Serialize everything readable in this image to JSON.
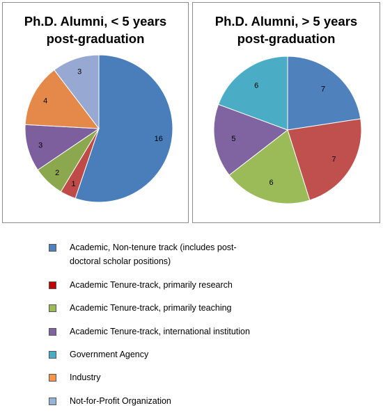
{
  "colors": {
    "academic_non_tenure": "#4f81bd",
    "tenure_research": "#c0504d",
    "tenure_teaching": "#9bbb59",
    "tenure_international": "#8064a2",
    "government": "#4bacc6",
    "industry": "#f79646",
    "nonprofit": "#93a9d6"
  },
  "chart_data": [
    {
      "type": "pie",
      "title": [
        "Ph.D. Alumni, < 5 years",
        "post-graduation"
      ],
      "slices": [
        {
          "category": "Academic, Non-tenure track (includes post-doctoral scholar positions)",
          "value": 16,
          "label": "16",
          "color": "#4a7ebb"
        },
        {
          "category": "Academic Tenure-track, primarily research",
          "value": 1,
          "label": "1",
          "color": "#be4b48"
        },
        {
          "category": "Academic Tenure-track, primarily teaching",
          "value": 2,
          "label": "2",
          "color": "#8ca84e"
        },
        {
          "category": "Academic Tenure-track, international institution",
          "value": 3,
          "label": "3",
          "color": "#7d5f9e"
        },
        {
          "category": "Industry",
          "value": 4,
          "label": "4",
          "color": "#e5894a"
        },
        {
          "category": "Not-for-Profit Organization",
          "value": 3,
          "label": "3",
          "color": "#97a9d2"
        }
      ]
    },
    {
      "type": "pie",
      "title": [
        "Ph.D. Alumni, > 5 years",
        "post-graduation"
      ],
      "slices": [
        {
          "category": "Academic, Non-tenure track (includes post-doctoral scholar positions)",
          "value": 7,
          "label": "7",
          "color": "#4f81bd"
        },
        {
          "category": "Academic Tenure-track, primarily research",
          "value": 7,
          "label": "7",
          "color": "#c0504d"
        },
        {
          "category": "Academic Tenure-track, primarily teaching",
          "value": 6,
          "label": "6",
          "color": "#9bbb59"
        },
        {
          "category": "Academic Tenure-track, international institution",
          "value": 5,
          "label": "5",
          "color": "#8064a2"
        },
        {
          "category": "Government Agency",
          "value": 6,
          "label": "6",
          "color": "#4bacc6"
        }
      ]
    }
  ],
  "legend": {
    "items": [
      {
        "lines": [
          "Academic, Non-tenure track (includes post-",
          "doctoral scholar positions)"
        ],
        "color": "#4f81bd"
      },
      {
        "lines": [
          "Academic Tenure-track, primarily research"
        ],
        "color": "#c00000"
      },
      {
        "lines": [
          "Academic Tenure-track, primarily teaching"
        ],
        "color": "#9bbb59"
      },
      {
        "lines": [
          "Academic Tenure-track, international institution"
        ],
        "color": "#8064a2"
      },
      {
        "lines": [
          "Government Agency"
        ],
        "color": "#4bacc6"
      },
      {
        "lines": [
          "Industry"
        ],
        "color": "#f79646"
      },
      {
        "lines": [
          "Not-for-Profit Organization"
        ],
        "color": "#95b3d7"
      }
    ]
  }
}
